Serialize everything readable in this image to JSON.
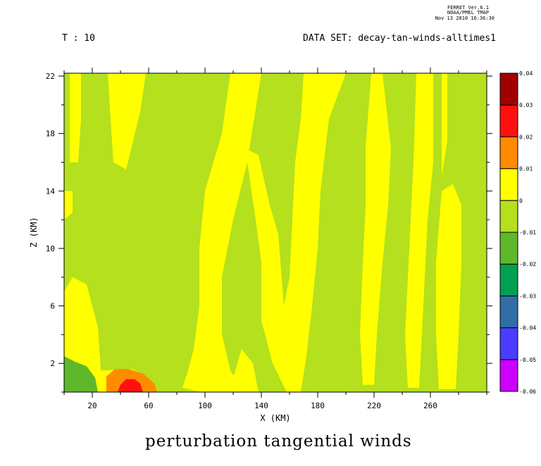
{
  "ferret": {
    "version": "FERRET  Ver.6.1",
    "org": "NOAA/PMEL TMAP",
    "date": "Nov 13 2010 16:36:30"
  },
  "header": {
    "time": "T : 10",
    "dataset": "DATA SET: decay-tan-winds-alltimes1"
  },
  "caption": "perturbation tangential winds",
  "chart_data": {
    "type": "heatmap",
    "title": "perturbation tangential winds",
    "xlabel": "X (KM)",
    "ylabel": "Z (KM)",
    "xlim": [
      0,
      300
    ],
    "ylim": [
      0,
      22.2
    ],
    "x_ticks": [
      20,
      60,
      100,
      140,
      180,
      220,
      260
    ],
    "y_ticks": [
      2,
      6,
      10,
      14,
      18,
      22
    ],
    "colorbar": {
      "levels": [
        -0.06,
        -0.05,
        -0.04,
        -0.03,
        -0.02,
        -0.01,
        0,
        0.01,
        0.02,
        0.03,
        0.04
      ],
      "labels": [
        "-0.06",
        "-0.05",
        "-0.04",
        "-0.03",
        "-0.02",
        "-0.01",
        "0",
        "0.01",
        "0.02",
        "0.03",
        "0.04"
      ],
      "colors": [
        "#cc00ff",
        "#4c3cff",
        "#2f6fa6",
        "#00a050",
        "#5fb82b",
        "#b4e01e",
        "#ffff00",
        "#ff8c00",
        "#ff1010",
        "#a00000"
      ]
    },
    "background_value_band": [
      -0.01,
      0
    ],
    "regions": [
      {
        "band": [
          0,
          0.01
        ],
        "points": [
          [
            4,
            22.2
          ],
          [
            12,
            22.2
          ],
          [
            12,
            19
          ],
          [
            10,
            16
          ],
          [
            4,
            16
          ]
        ]
      },
      {
        "band": [
          0,
          0.01
        ],
        "points": [
          [
            31,
            22.2
          ],
          [
            58,
            22.2
          ],
          [
            54,
            19.5
          ],
          [
            44,
            15.5
          ],
          [
            35,
            16
          ],
          [
            33,
            19
          ]
        ]
      },
      {
        "band": [
          0,
          0.01
        ],
        "points": [
          [
            88,
            22.2
          ],
          [
            118,
            22.2
          ],
          [
            112,
            18
          ],
          [
            100,
            14
          ],
          [
            96,
            10
          ],
          [
            96,
            6
          ],
          [
            92,
            3
          ],
          [
            88,
            1.5
          ],
          [
            84,
            0.3
          ],
          [
            98,
            0
          ],
          [
            128,
            0
          ],
          [
            118,
            1.5
          ],
          [
            112,
            4
          ],
          [
            112,
            8
          ],
          [
            120,
            12
          ],
          [
            130,
            16
          ],
          [
            140,
            22.2
          ]
        ]
      },
      {
        "band": [
          0,
          0.01
        ],
        "points": [
          [
            0,
            14
          ],
          [
            6,
            14
          ],
          [
            6,
            12.5
          ],
          [
            0,
            12
          ]
        ]
      },
      {
        "band": [
          0,
          0.01
        ],
        "points": [
          [
            0,
            2.5
          ],
          [
            0,
            7
          ],
          [
            6,
            8
          ],
          [
            16,
            7.5
          ],
          [
            24,
            4.5
          ],
          [
            26,
            1.5
          ],
          [
            48,
            1.6
          ],
          [
            56,
            1.3
          ],
          [
            60,
            0
          ],
          [
            0,
            0
          ]
        ]
      },
      {
        "band": [
          0,
          0.01
        ],
        "points": [
          [
            118,
            17
          ],
          [
            126,
            17.5
          ],
          [
            128,
            17
          ],
          [
            138,
            16.5
          ],
          [
            146,
            13
          ],
          [
            152,
            11
          ],
          [
            156,
            6
          ],
          [
            160,
            8
          ],
          [
            162,
            12
          ],
          [
            164,
            16
          ],
          [
            168,
            19
          ],
          [
            170,
            22.2
          ],
          [
            200,
            22.2
          ],
          [
            188,
            19
          ],
          [
            182,
            14
          ],
          [
            180,
            10
          ],
          [
            176,
            6
          ],
          [
            172,
            2.5
          ],
          [
            168,
            0
          ],
          [
            158,
            0
          ],
          [
            148,
            2
          ],
          [
            140,
            5
          ],
          [
            140,
            9
          ],
          [
            136,
            12
          ],
          [
            130,
            16
          ]
        ]
      },
      {
        "band": [
          0,
          0.01
        ],
        "points": [
          [
            124,
            0
          ],
          [
            138,
            0
          ],
          [
            134,
            2
          ],
          [
            126,
            3
          ],
          [
            120,
            1
          ]
        ]
      },
      {
        "band": [
          0,
          0.01
        ],
        "points": [
          [
            218,
            22.2
          ],
          [
            226,
            22.2
          ],
          [
            232,
            17
          ],
          [
            230,
            13
          ],
          [
            226,
            9
          ],
          [
            222,
            4
          ],
          [
            220,
            0.5
          ],
          [
            212,
            0.5
          ],
          [
            210,
            4
          ],
          [
            212,
            9
          ],
          [
            214,
            13
          ],
          [
            214,
            17
          ]
        ]
      },
      {
        "band": [
          0,
          0.01
        ],
        "points": [
          [
            250,
            22.2
          ],
          [
            262,
            22.2
          ],
          [
            262,
            16
          ],
          [
            258,
            12
          ],
          [
            256,
            8
          ],
          [
            254,
            4
          ],
          [
            252,
            0.3
          ],
          [
            244,
            0.3
          ],
          [
            242,
            4
          ],
          [
            244,
            8
          ],
          [
            246,
            12
          ],
          [
            248,
            16
          ]
        ]
      },
      {
        "band": [
          0,
          0.01
        ],
        "points": [
          [
            268,
            22.2
          ],
          [
            272,
            22.2
          ],
          [
            272,
            17.5
          ],
          [
            268,
            15
          ]
        ]
      },
      {
        "band": [
          0,
          0.01
        ],
        "points": [
          [
            268,
            14
          ],
          [
            276,
            14.5
          ],
          [
            282,
            13
          ],
          [
            282,
            9
          ],
          [
            280,
            4
          ],
          [
            278,
            0.2
          ],
          [
            266,
            0.2
          ],
          [
            264,
            4
          ],
          [
            264,
            9
          ]
        ]
      },
      {
        "band": [
          -0.02,
          -0.01
        ],
        "points": [
          [
            0,
            2.5
          ],
          [
            8,
            2.1
          ],
          [
            16,
            1.8
          ],
          [
            22,
            1.0
          ],
          [
            24,
            0
          ],
          [
            0,
            0
          ]
        ]
      },
      {
        "band": [
          -0.02,
          -0.01
        ],
        "points": [
          [
            6,
            0
          ],
          [
            20,
            0
          ],
          [
            18,
            0.6
          ],
          [
            14,
            0.9
          ],
          [
            8,
            0.6
          ]
        ]
      },
      {
        "band": [
          0.01,
          0.02
        ],
        "points": [
          [
            30,
            0
          ],
          [
            66,
            0
          ],
          [
            64,
            0.6
          ],
          [
            56,
            1.3
          ],
          [
            46,
            1.6
          ],
          [
            36,
            1.6
          ],
          [
            30,
            1.1
          ]
        ]
      },
      {
        "band": [
          0.02,
          0.03
        ],
        "points": [
          [
            38,
            0
          ],
          [
            56,
            0
          ],
          [
            54,
            0.6
          ],
          [
            50,
            0.9
          ],
          [
            44,
            0.9
          ],
          [
            40,
            0.5
          ]
        ]
      }
    ]
  }
}
